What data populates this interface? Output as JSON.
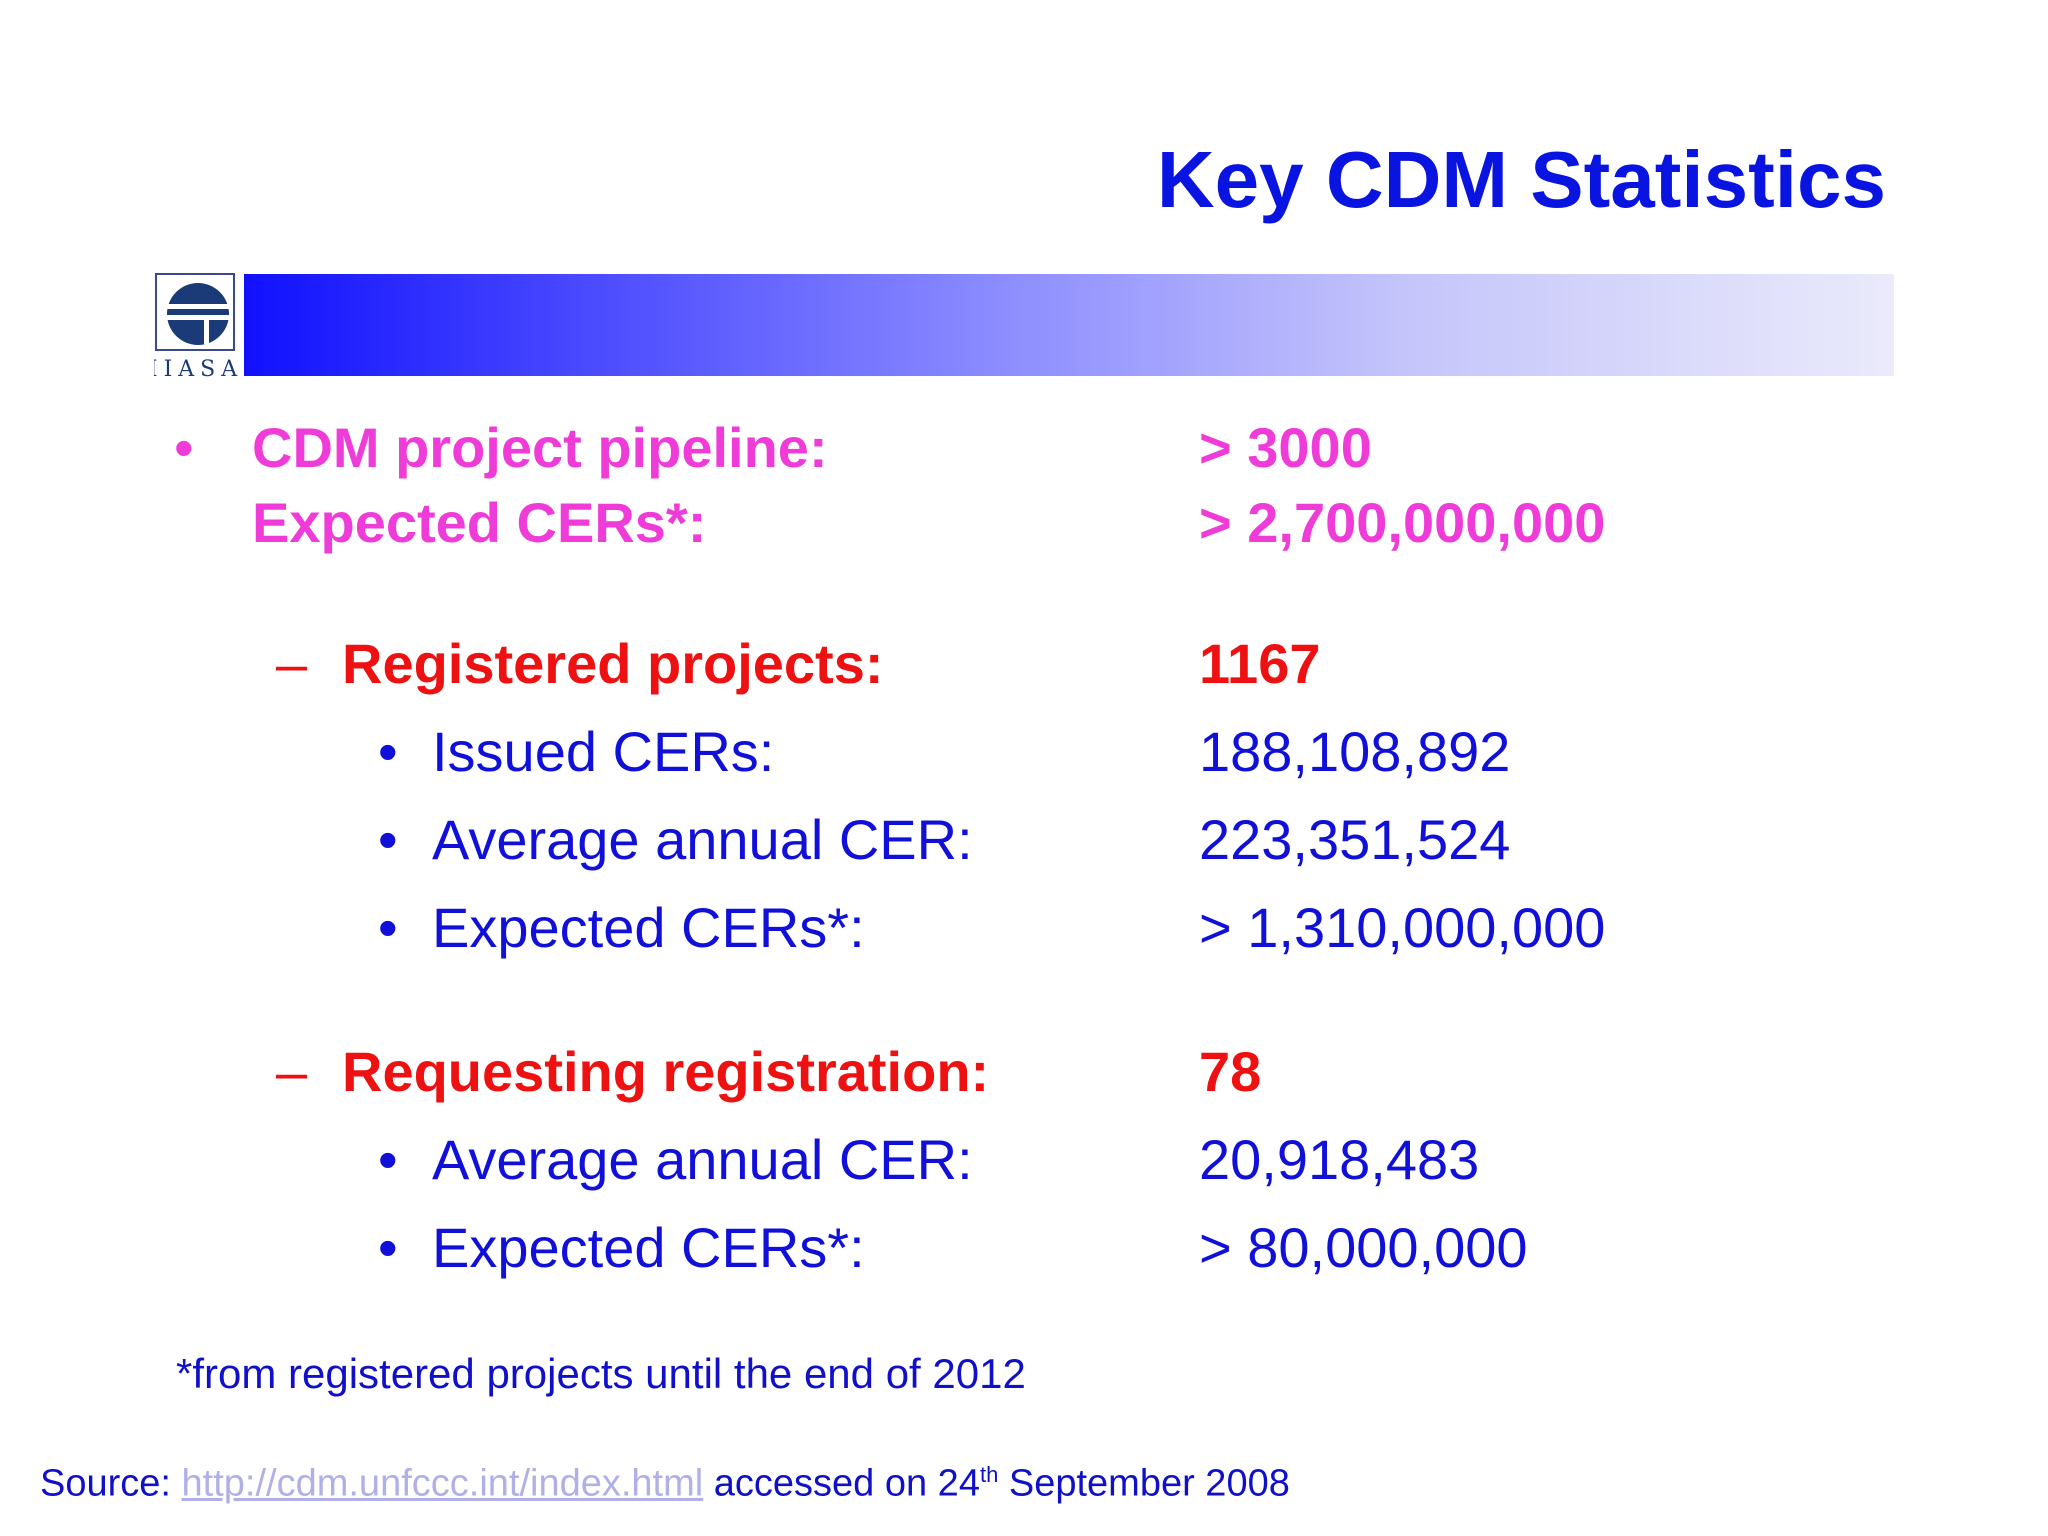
{
  "slide": {
    "title": "Key CDM Statistics",
    "logo_text": "IIASA"
  },
  "colors": {
    "title": "#0a14e0",
    "level1": "#ef3cd8",
    "level2": "#ee1111",
    "level3": "#1010d8",
    "band_start": "#1010ff",
    "band_end": "#eaeafb"
  },
  "pipeline": {
    "bullet": "•",
    "label": "CDM project pipeline:",
    "value": "> 3000",
    "expected_label": "Expected CERs*:",
    "expected_value": "> 2,700,000,000"
  },
  "registered": {
    "dash": "–",
    "label": "Registered projects:",
    "value": "1167",
    "items": [
      {
        "bullet": "•",
        "label": "Issued CERs:",
        "value": "188,108,892"
      },
      {
        "bullet": "•",
        "label": "Average annual CER:",
        "value": "223,351,524"
      },
      {
        "bullet": "•",
        "label": "Expected CERs*:",
        "value": "> 1,310,000,000"
      }
    ]
  },
  "requesting": {
    "dash": "–",
    "label": "Requesting registration:",
    "value": "78",
    "items": [
      {
        "bullet": "•",
        "label": "Average annual CER:",
        "value": "20,918,483"
      },
      {
        "bullet": "•",
        "label": "Expected CERs*:",
        "value": "> 80,000,000"
      }
    ]
  },
  "footnote": "*from registered projects until the end of 2012",
  "source": {
    "prefix": "Source: ",
    "link": "http://cdm.unfccc.int/index.html",
    "mid": " accessed on 24",
    "sup": "th",
    "suffix": " September 2008"
  }
}
